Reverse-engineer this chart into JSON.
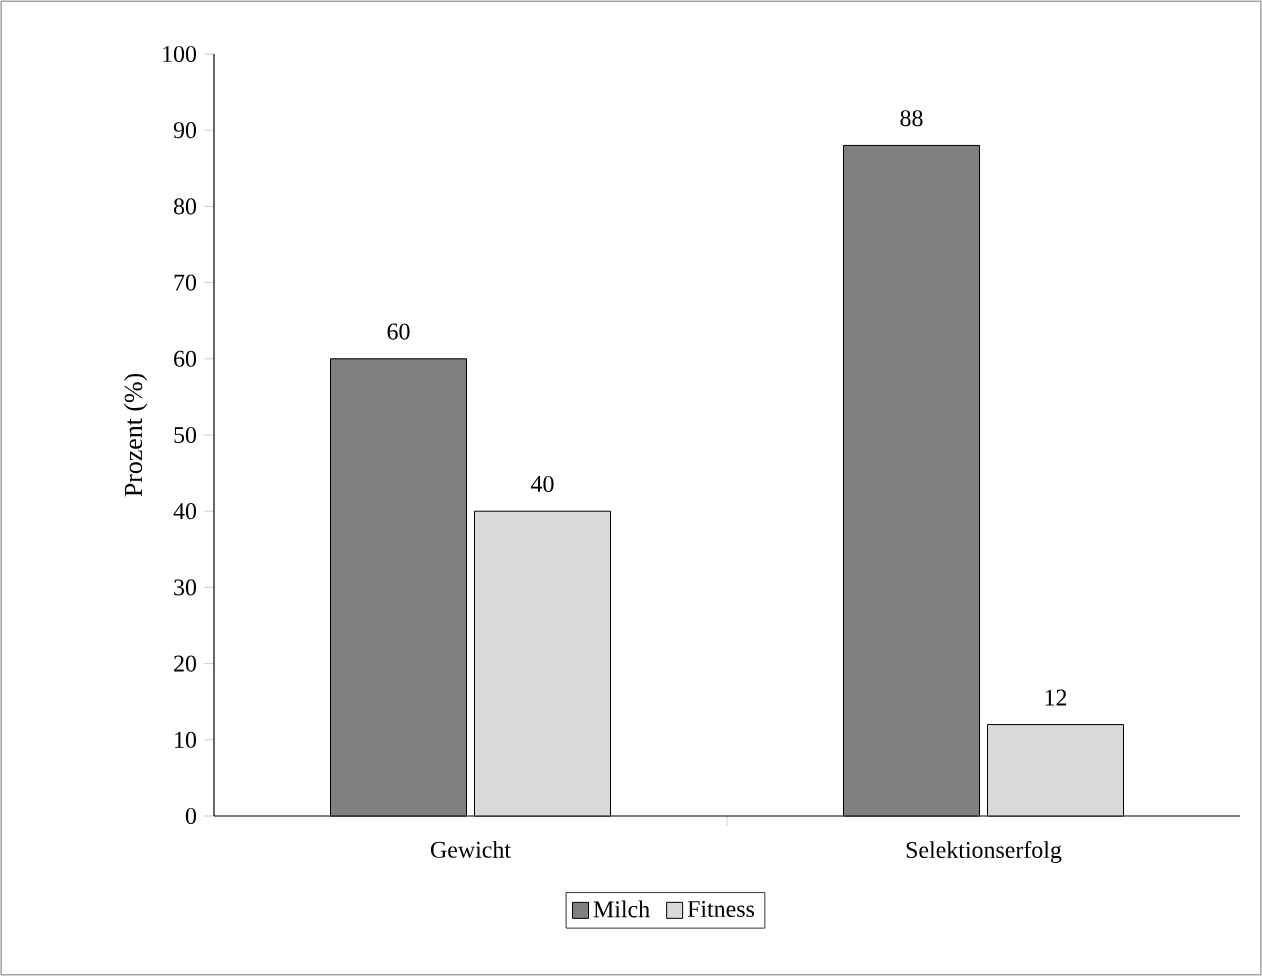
{
  "chart_data": {
    "type": "bar",
    "ylabel": "Prozent (%)",
    "categories": [
      "Gewicht",
      "Selektionserfolg"
    ],
    "series": [
      {
        "name": "Milch",
        "color": "#808080",
        "values": [
          60,
          88
        ]
      },
      {
        "name": "Fitness",
        "color": "#d9d9d9",
        "values": [
          40,
          12
        ]
      }
    ],
    "ylim": [
      0,
      100
    ],
    "yticks": [
      0,
      10,
      20,
      30,
      40,
      50,
      60,
      70,
      80,
      90,
      100
    ],
    "grid": false,
    "legend": "bottom",
    "data_labels": true
  }
}
